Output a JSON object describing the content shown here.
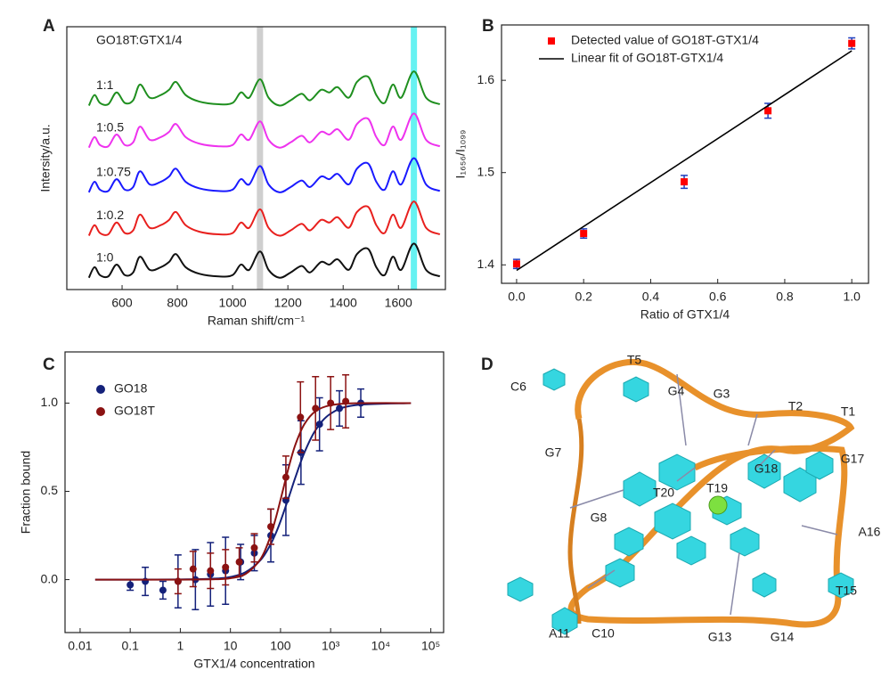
{
  "chart_data": [
    {
      "type": "line",
      "panel": "A",
      "annotation": "GO18T:GTX1/4",
      "x_label": "Raman shift/cm⁻¹",
      "y_label": "Intersity/a.u.",
      "xlim": [
        400,
        1770
      ],
      "ylim": [
        0,
        10
      ],
      "xticks": [
        600,
        800,
        1000,
        1200,
        1400,
        1600
      ],
      "highlights": [
        {
          "x": 1099,
          "color": "#cfcfcf"
        },
        {
          "x": 1656,
          "color": "#66f2f2"
        }
      ],
      "x": [
        480,
        500,
        520,
        550,
        580,
        610,
        640,
        665,
        700,
        740,
        770,
        795,
        830,
        880,
        950,
        1000,
        1030,
        1060,
        1099,
        1130,
        1170,
        1210,
        1250,
        1280,
        1320,
        1350,
        1380,
        1420,
        1450,
        1490,
        1520,
        1550,
        1580,
        1610,
        1656,
        1700,
        1750
      ],
      "series": [
        {
          "name": "1:1",
          "color": "#1f8f1f",
          "values": [
            7.0,
            7.4,
            7.1,
            7.05,
            7.5,
            7.1,
            7.2,
            7.8,
            7.3,
            7.4,
            7.6,
            7.9,
            7.4,
            7.15,
            7.05,
            7.1,
            7.5,
            7.3,
            8.0,
            7.3,
            7.0,
            7.2,
            7.45,
            7.2,
            7.6,
            7.5,
            7.7,
            7.3,
            7.9,
            8.1,
            7.4,
            7.1,
            7.8,
            7.3,
            8.3,
            7.3,
            7.05
          ]
        },
        {
          "name": "1:0.5",
          "color": "#ee33ee",
          "values": [
            5.4,
            5.8,
            5.5,
            5.45,
            5.9,
            5.5,
            5.6,
            6.2,
            5.7,
            5.8,
            6.0,
            6.3,
            5.8,
            5.55,
            5.45,
            5.5,
            5.9,
            5.7,
            6.4,
            5.7,
            5.4,
            5.6,
            5.85,
            5.6,
            6.0,
            5.9,
            6.1,
            5.7,
            6.3,
            6.5,
            5.8,
            5.5,
            6.2,
            5.7,
            6.7,
            5.7,
            5.45
          ]
        },
        {
          "name": "1:0.75",
          "color": "#1a1aff",
          "values": [
            3.7,
            4.1,
            3.8,
            3.75,
            4.2,
            3.8,
            3.9,
            4.5,
            4.0,
            4.1,
            4.3,
            4.6,
            4.1,
            3.85,
            3.75,
            3.8,
            4.2,
            4.0,
            4.7,
            4.0,
            3.7,
            3.9,
            4.15,
            3.9,
            4.3,
            4.2,
            4.4,
            4.0,
            4.6,
            4.8,
            4.1,
            3.8,
            4.5,
            4.0,
            5.0,
            4.0,
            3.75
          ]
        },
        {
          "name": "1:0.2",
          "color": "#e8201e",
          "values": [
            2.05,
            2.45,
            2.15,
            2.1,
            2.55,
            2.15,
            2.25,
            2.85,
            2.35,
            2.45,
            2.65,
            2.95,
            2.45,
            2.2,
            2.1,
            2.15,
            2.55,
            2.35,
            3.05,
            2.35,
            2.05,
            2.25,
            2.5,
            2.25,
            2.65,
            2.55,
            2.75,
            2.35,
            2.95,
            3.15,
            2.45,
            2.15,
            2.85,
            2.35,
            3.35,
            2.35,
            2.1
          ]
        },
        {
          "name": "1:0",
          "color": "#111111",
          "values": [
            0.45,
            0.85,
            0.55,
            0.5,
            0.95,
            0.55,
            0.65,
            1.25,
            0.75,
            0.85,
            1.05,
            1.35,
            0.85,
            0.6,
            0.5,
            0.55,
            0.95,
            0.75,
            1.45,
            0.75,
            0.45,
            0.65,
            0.9,
            0.65,
            1.05,
            0.95,
            1.15,
            0.75,
            1.35,
            1.55,
            0.85,
            0.55,
            1.25,
            0.75,
            1.75,
            0.75,
            0.5
          ]
        }
      ]
    },
    {
      "type": "scatter",
      "panel": "B",
      "x_label": "Ratio of GTX1/4",
      "y_label": "I₁₆₅₆/I₁₀₉₉",
      "xlim": [
        -0.045,
        1.05
      ],
      "ylim": [
        1.38,
        1.66
      ],
      "xticks": [
        {
          "value": 0,
          "label": "0.0"
        },
        {
          "value": 0.2,
          "label": "0.2"
        },
        {
          "value": 0.4,
          "label": "0.4"
        },
        {
          "value": 0.6,
          "label": "0.6"
        },
        {
          "value": 0.8,
          "label": "0.8"
        },
        {
          "value": 1,
          "label": "1.0"
        }
      ],
      "yticks": [
        1.4,
        1.5,
        1.6
      ],
      "series": [
        {
          "name": "Detected value of GO18T-GTX1/4",
          "color": "#ff0000",
          "error_color": "#1f3fbf",
          "marker": "square",
          "x": [
            0,
            0.2,
            0.5,
            0.75,
            1
          ],
          "values": [
            1.401,
            1.434,
            1.49,
            1.567,
            1.64
          ],
          "errors": [
            0.005,
            0.005,
            0.007,
            0.008,
            0.006
          ]
        },
        {
          "name": "Linear fit of GO18T-GTX1/4",
          "color": "#000000",
          "x": [
            0,
            1
          ],
          "values": [
            1.394,
            1.632
          ]
        }
      ]
    },
    {
      "type": "scatter",
      "panel": "C",
      "x_label": "GTX1/4 concentration",
      "y_label": "Fraction bound",
      "log_x": true,
      "xlim": [
        0.005,
        180000
      ],
      "ylim": [
        -0.3,
        1.29
      ],
      "xticks": [
        0.01,
        0.1,
        1,
        10,
        100,
        {
          "value": 1000,
          "label": "10³"
        },
        {
          "value": 10000,
          "label": "10⁴"
        },
        {
          "value": 100000,
          "label": "10⁵"
        }
      ],
      "yticks": [
        {
          "value": 0,
          "label": "0.0"
        },
        {
          "value": 0.5,
          "label": "0.5"
        },
        {
          "value": 1,
          "label": "1.0"
        }
      ],
      "series": [
        {
          "name": "GO18",
          "color": "#14217a",
          "marker": "circle",
          "x": [
            0.1,
            0.2,
            0.45,
            0.9,
            2,
            4,
            8,
            16,
            30,
            64,
            128,
            256,
            600,
            1500,
            4000
          ],
          "values": [
            -0.03,
            -0.01,
            -0.06,
            -0.01,
            0.0,
            0.03,
            0.05,
            0.1,
            0.15,
            0.25,
            0.45,
            0.72,
            0.88,
            0.97,
            1.0
          ],
          "errors": [
            0.03,
            0.08,
            0.05,
            0.15,
            0.17,
            0.18,
            0.19,
            0.1,
            0.1,
            0.15,
            0.2,
            0.18,
            0.15,
            0.1,
            0.08
          ],
          "fit": {
            "x": [
              0.02,
              0.1,
              1,
              5,
              10,
              20,
              40,
              60,
              80,
              100,
              150,
              200,
              300,
              500,
              1000,
              3000,
              40000
            ],
            "values": [
              0,
              0,
              0.001,
              0.006,
              0.015,
              0.042,
              0.111,
              0.187,
              0.261,
              0.331,
              0.476,
              0.583,
              0.72,
              0.847,
              0.94,
              0.988,
              1.0
            ]
          }
        },
        {
          "name": "GO18T",
          "color": "#8b1212",
          "marker": "circle",
          "x": [
            0.9,
            1.8,
            4,
            8,
            15,
            30,
            64,
            128,
            250,
            500,
            1000,
            2000
          ],
          "values": [
            -0.01,
            0.06,
            0.05,
            0.07,
            0.1,
            0.18,
            0.3,
            0.58,
            0.92,
            0.97,
            1.0,
            1.01
          ],
          "errors": [
            0.07,
            0.1,
            0.1,
            0.1,
            0.08,
            0.08,
            0.1,
            0.12,
            0.2,
            0.18,
            0.15,
            0.15
          ],
          "fit": {
            "x": [
              0.02,
              0.1,
              1,
              5,
              10,
              20,
              40,
              60,
              80,
              100,
              150,
              200,
              300,
              500,
              1000,
              3000,
              40000
            ],
            "values": [
              0,
              0,
              0,
              0.002,
              0.008,
              0.032,
              0.117,
              0.229,
              0.346,
              0.452,
              0.65,
              0.768,
              0.881,
              0.954,
              0.988,
              0.999,
              1.0
            ]
          }
        }
      ]
    }
  ],
  "structure": {
    "panel": "D",
    "labels": [
      "T5",
      "C6",
      "G4",
      "G3",
      "T2",
      "T1",
      "G7",
      "G17",
      "G18",
      "T19",
      "T20",
      "G8",
      "A16",
      "T15",
      "A11",
      "C10",
      "G13",
      "G14"
    ]
  }
}
